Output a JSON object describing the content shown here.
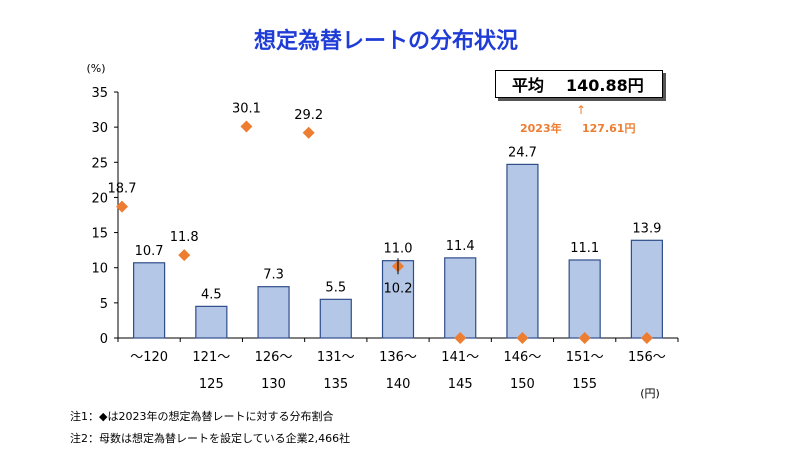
{
  "chart_data": {
    "type": "bar",
    "title": "想定為替レートの分布状況",
    "y_unit": "(%)",
    "x_unit": "(円)",
    "ylim": [
      0,
      35
    ],
    "yticks": [
      0,
      5,
      10,
      15,
      20,
      25,
      30,
      35
    ],
    "categories": [
      [
        "～120",
        ""
      ],
      [
        "121～",
        "125"
      ],
      [
        "126～",
        "130"
      ],
      [
        "131～",
        "135"
      ],
      [
        "136～",
        "140"
      ],
      [
        "141～",
        "145"
      ],
      [
        "146～",
        "150"
      ],
      [
        "151～",
        "155"
      ],
      [
        "156～",
        ""
      ]
    ],
    "series": [
      {
        "type": "bar",
        "values": [
          10.7,
          4.5,
          7.3,
          5.5,
          11.0,
          11.4,
          24.7,
          11.1,
          13.9
        ],
        "color": "#b4c7e7",
        "border": "#2f4d8a"
      },
      {
        "type": "marker",
        "marker": "diamond",
        "values": [
          18.7,
          11.8,
          30.1,
          29.2,
          10.2,
          0.0,
          0.0,
          0.0,
          0.0
        ],
        "color": "#ed7d31"
      }
    ],
    "grid": false,
    "legend": "none"
  },
  "average": {
    "label": "平均",
    "value": "140.88円"
  },
  "previous": {
    "year_label": "2023年",
    "value": "127.61円",
    "arrow": "↑"
  },
  "notes": [
    "注1：◆は2023年の想定為替レートに対する分布割合",
    "注2：母数は想定為替レートを設定している企業2,466社"
  ],
  "colors": {
    "title": "#1f3cd6",
    "accent": "#ed7d31",
    "bar_fill": "#b4c7e7",
    "bar_border": "#2f4d8a"
  }
}
